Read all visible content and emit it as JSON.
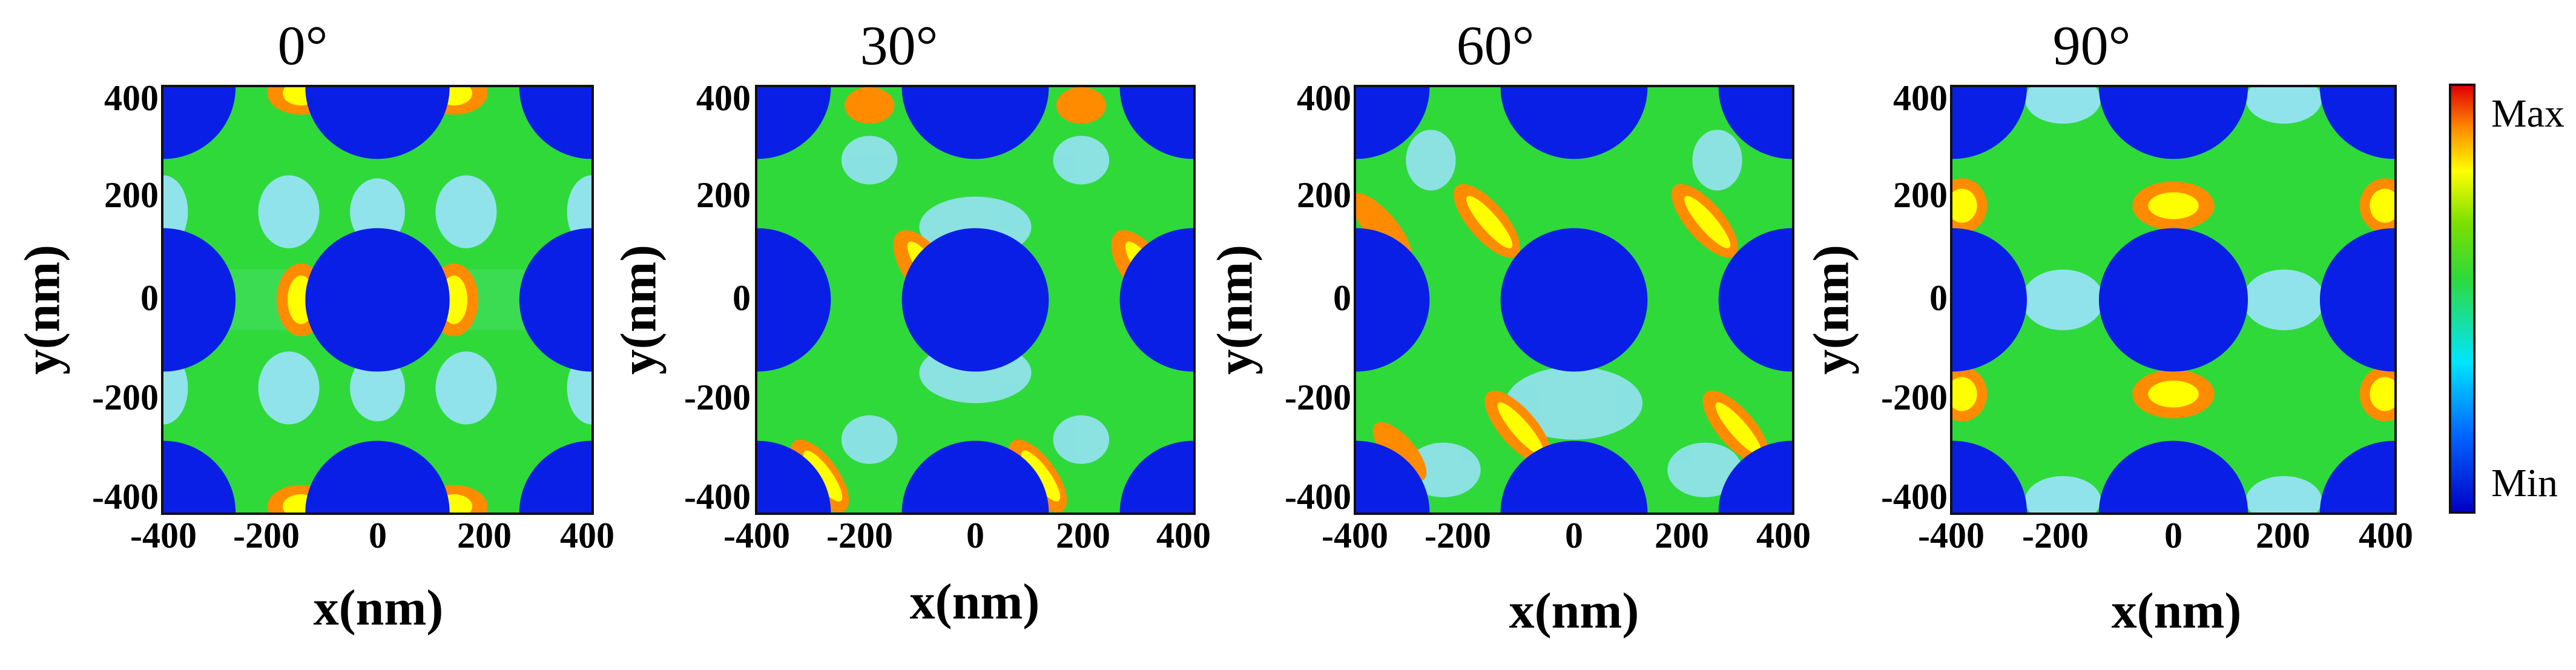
{
  "chart_data": [
    {
      "type": "heatmap",
      "title": "0°",
      "xlabel": "x(nm)",
      "ylabel": "y(nm)",
      "xlim": [
        -420,
        420
      ],
      "ylim": [
        -420,
        420
      ],
      "xticks": [
        "-400",
        "-200",
        "0",
        "200",
        "400"
      ],
      "yticks": [
        "400",
        "200",
        "0",
        "-200",
        "-400"
      ]
    },
    {
      "type": "heatmap",
      "title": "30°",
      "xlabel": "x(nm)",
      "ylabel": "y(nm)",
      "xlim": [
        -420,
        420
      ],
      "ylim": [
        -420,
        420
      ],
      "xticks": [
        "-400",
        "-200",
        "0",
        "200",
        "400"
      ],
      "yticks": [
        "400",
        "200",
        "0",
        "-200",
        "-400"
      ]
    },
    {
      "type": "heatmap",
      "title": "60°",
      "xlabel": "x(nm)",
      "ylabel": "y(nm)",
      "xlim": [
        -420,
        420
      ],
      "ylim": [
        -420,
        420
      ],
      "xticks": [
        "-400",
        "-200",
        "0",
        "200",
        "400"
      ],
      "yticks": [
        "400",
        "200",
        "0",
        "-200",
        "-400"
      ]
    },
    {
      "type": "heatmap",
      "title": "90°",
      "xlabel": "x(nm)",
      "ylabel": "y(nm)",
      "xlim": [
        -420,
        420
      ],
      "ylim": [
        -420,
        420
      ],
      "xticks": [
        "-400",
        "-200",
        "0",
        "200",
        "400"
      ],
      "yticks": [
        "400",
        "200",
        "0",
        "-200",
        "-400"
      ]
    }
  ],
  "colorbar": {
    "max_label": "Max",
    "min_label": "Min",
    "colors": [
      "#0000c8",
      "#0066ff",
      "#00e5ff",
      "#2fd93a",
      "#7de000",
      "#ffff00",
      "#ff8c00",
      "#e00000"
    ]
  }
}
